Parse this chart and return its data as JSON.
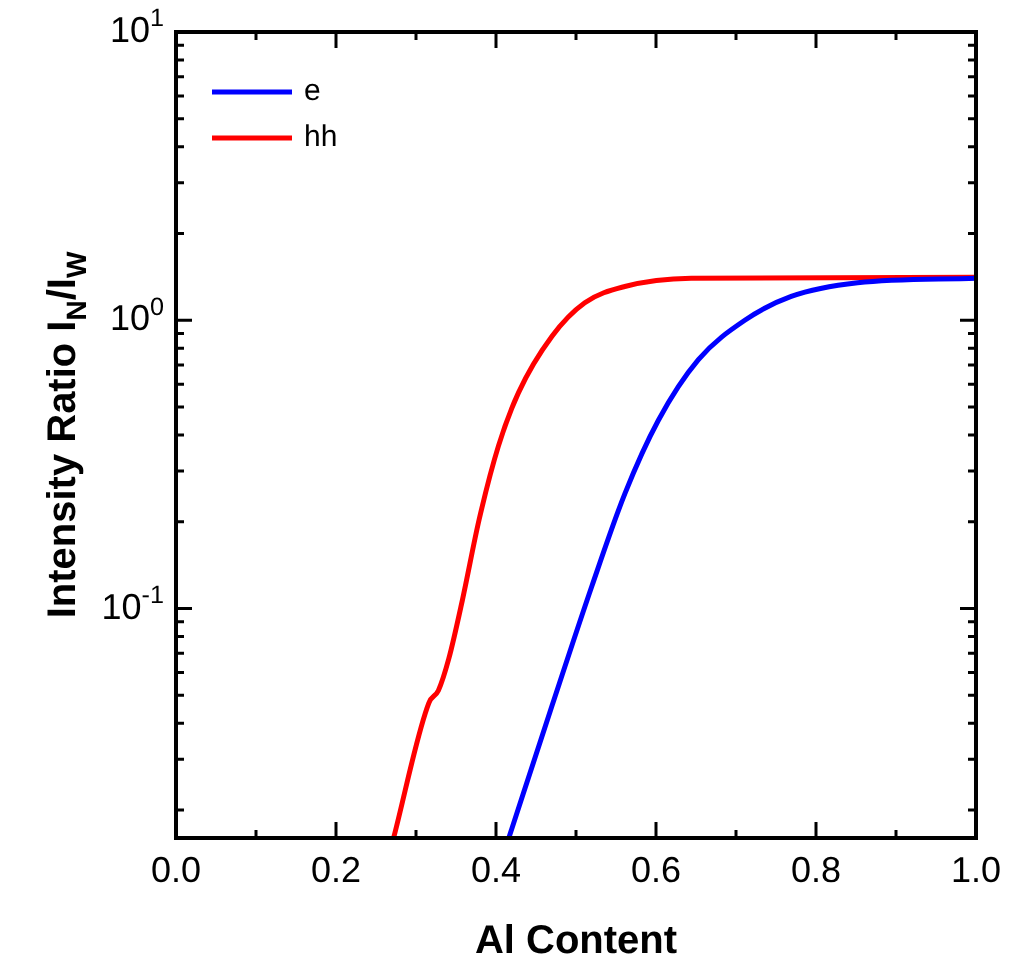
{
  "chart_data": {
    "type": "line",
    "xlabel": "Al Content",
    "ylabel": "Intensity Ratio I$_{N}$/I$_{W}$",
    "log": "y",
    "grid": false,
    "legend": "top left",
    "marker": "none",
    "line_style": "solid",
    "xlim": [
      0,
      1
    ],
    "ylim": [
      0.016,
      10
    ],
    "xticks": [
      {
        "value": 0,
        "label": "0.0"
      },
      {
        "value": 0.1,
        "label": null
      },
      {
        "value": 0.2,
        "label": "0.2"
      },
      {
        "value": 0.3,
        "label": null
      },
      {
        "value": 0.4,
        "label": "0.4"
      },
      {
        "value": 0.5,
        "label": null
      },
      {
        "value": 0.6,
        "label": "0.6"
      },
      {
        "value": 0.7,
        "label": null
      },
      {
        "value": 0.8,
        "label": "0.8"
      },
      {
        "value": 0.9,
        "label": null
      },
      {
        "value": 1,
        "label": "1.0"
      }
    ],
    "yticks": [
      {
        "value": 0.02,
        "label": null
      },
      {
        "value": 0.03,
        "label": null
      },
      {
        "value": 0.04,
        "label": null
      },
      {
        "value": 0.05,
        "label": null
      },
      {
        "value": 0.06,
        "label": null
      },
      {
        "value": 0.07,
        "label": null
      },
      {
        "value": 0.08,
        "label": null
      },
      {
        "value": 0.09,
        "label": null
      },
      {
        "value": 0.1,
        "label": "10$^{-1}$"
      },
      {
        "value": 0.2,
        "label": null
      },
      {
        "value": 0.3,
        "label": null
      },
      {
        "value": 0.4,
        "label": null
      },
      {
        "value": 0.5,
        "label": null
      },
      {
        "value": 0.6,
        "label": null
      },
      {
        "value": 0.7,
        "label": null
      },
      {
        "value": 0.8,
        "label": null
      },
      {
        "value": 0.9,
        "label": null
      },
      {
        "value": 1,
        "label": "10$^{0}$"
      },
      {
        "value": 2,
        "label": null
      },
      {
        "value": 3,
        "label": null
      },
      {
        "value": 4,
        "label": null
      },
      {
        "value": 5,
        "label": null
      },
      {
        "value": 6,
        "label": null
      },
      {
        "value": 7,
        "label": null
      },
      {
        "value": 8,
        "label": null
      },
      {
        "value": 9,
        "label": null
      },
      {
        "value": 10,
        "label": "10$^{1}$"
      }
    ],
    "series": [
      {
        "name": "e",
        "color": "#0000ff",
        "x": [
          0.416,
          0.47,
          0.52,
          0.561,
          0.603,
          0.653,
          0.711,
          0.769,
          0.852,
          1.0
        ],
        "values": [
          0.016,
          0.046,
          0.12,
          0.25,
          0.45,
          0.73,
          1.0,
          1.21,
          1.35,
          1.4
        ]
      },
      {
        "name": "hh",
        "color": "#ff0000",
        "x": [
          0.272,
          0.316,
          0.328,
          0.341,
          0.358,
          0.379,
          0.403,
          0.428,
          0.47,
          0.511,
          0.561,
          0.644,
          1.0
        ],
        "values": [
          0.016,
          0.047,
          0.052,
          0.067,
          0.107,
          0.204,
          0.366,
          0.56,
          0.88,
          1.15,
          1.31,
          1.4,
          1.41
        ]
      }
    ]
  }
}
